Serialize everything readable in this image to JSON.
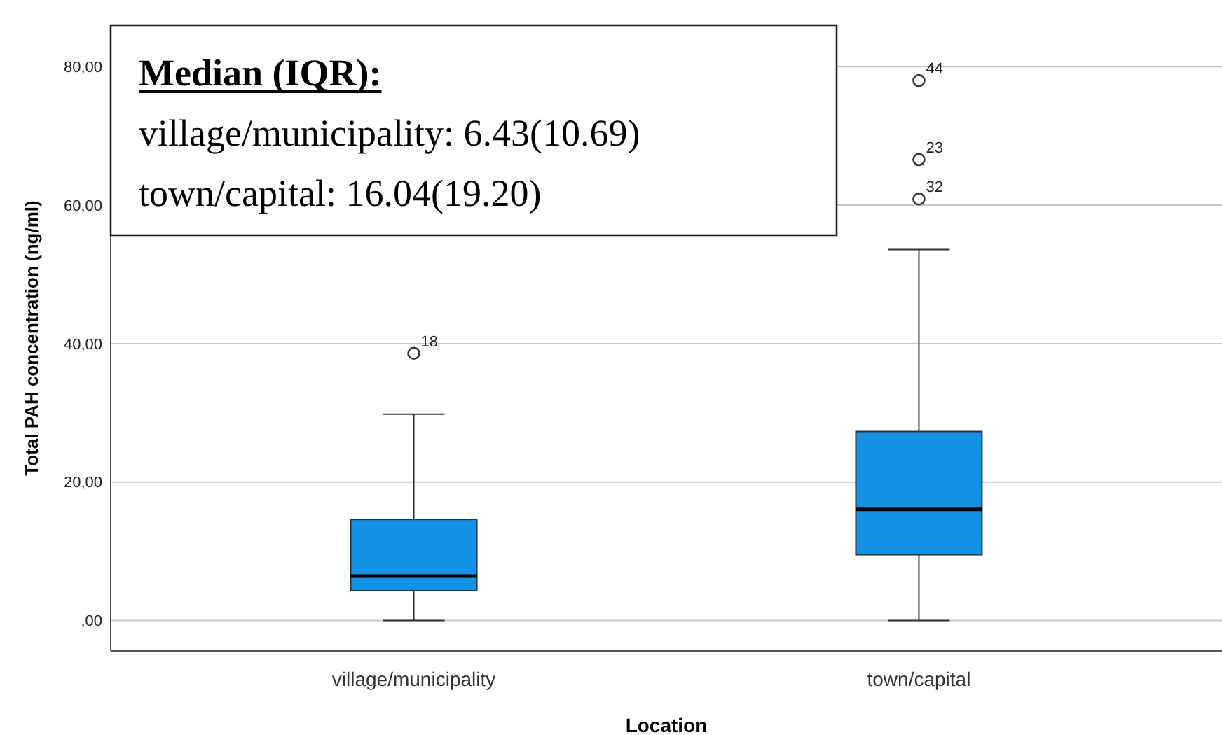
{
  "chart_data": {
    "type": "box",
    "xlabel": "Location",
    "ylabel": "Total PAH concentration (ng/ml)",
    "categories": [
      "village/municipality",
      "town/capital"
    ],
    "series": [
      {
        "color": "#1490e5",
        "boxes": [
          {
            "low": 0,
            "q1": 4.3,
            "median": 6.43,
            "q3": 14.6,
            "high": 29.8,
            "outliers": [
              38.6
            ]
          },
          {
            "low": 0,
            "q1": 9.5,
            "median": 16.04,
            "q3": 27.3,
            "high": 53.6,
            "outliers": [
              60.9,
              66.6,
              78.0
            ]
          }
        ]
      }
    ],
    "ylim": [
      -4.4,
      86
    ],
    "yticks": [
      {
        "value": 0,
        "label": ",00"
      },
      {
        "value": 20,
        "label": "20,00"
      },
      {
        "value": 40,
        "label": "40,00"
      },
      {
        "value": 60,
        "label": "60,00"
      },
      {
        "value": 80,
        "label": "80,00"
      }
    ],
    "grid": "y",
    "annotations": [
      "Median (IQR):",
      "village/municipality: 6.43(10.69)",
      "town/capital: 16.04(19.20)",
      "18",
      "32",
      "23",
      "44"
    ]
  }
}
